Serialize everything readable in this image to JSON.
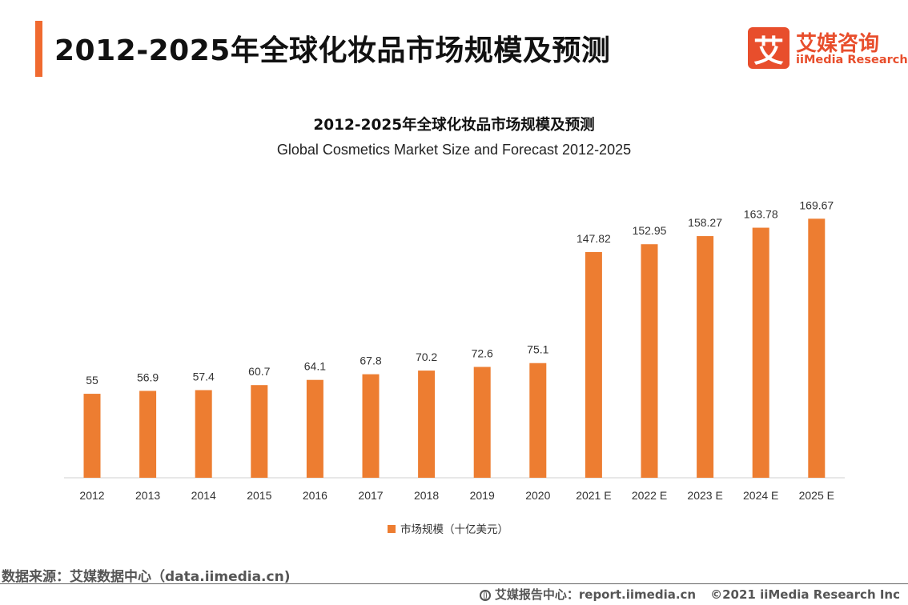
{
  "header": {
    "title": "2012-2025年全球化妆品市场规模及预测",
    "logo_mark": "艾",
    "logo_cn": "艾媒咨询",
    "logo_en": "iiMedia Research",
    "accent_color": "#f06a30",
    "logo_color": "#e84e2c"
  },
  "chart_data": {
    "type": "bar",
    "title": "2012-2025年全球化妆品市场规模及预测",
    "subtitle": "Global Cosmetics Market Size and Forecast 2012-2025",
    "categories": [
      "2012",
      "2013",
      "2014",
      "2015",
      "2016",
      "2017",
      "2018",
      "2019",
      "2020",
      "2021 E",
      "2022 E",
      "2023 E",
      "2024 E",
      "2025 E"
    ],
    "series": [
      {
        "name": "市场规模（十亿美元）",
        "values": [
          55,
          56.9,
          57.4,
          60.7,
          64.1,
          67.8,
          70.2,
          72.6,
          75.1,
          147.82,
          152.95,
          158.27,
          163.78,
          169.67
        ],
        "labels": [
          "55",
          "56.9",
          "57.4",
          "60.7",
          "64.1",
          "67.8",
          "70.2",
          "72.6",
          "75.1",
          "147.82",
          "152.95",
          "158.27",
          "163.78",
          "169.67"
        ],
        "color": "#ed7d31"
      }
    ],
    "ylim": [
      0,
      180
    ],
    "grid": false,
    "legend_position": "bottom"
  },
  "footer": {
    "source": "数据来源：艾媒数据中心（data.iimedia.cn)",
    "report_center": "艾媒报告中心：report.iimedia.cn",
    "copyright": "©2021  iiMedia Research  Inc"
  }
}
